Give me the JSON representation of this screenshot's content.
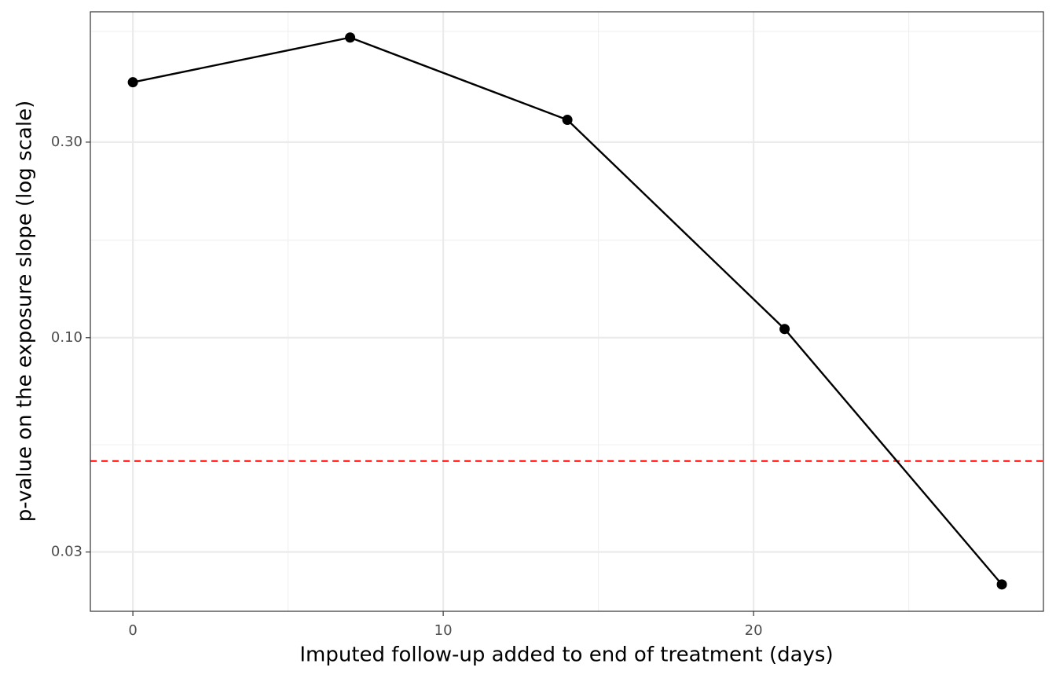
{
  "chart_data": {
    "type": "line",
    "xlabel": "Imputed follow-up added to end of treatment (days)",
    "ylabel": "p-value on the exposure slope (log scale)",
    "x": [
      0,
      7,
      14,
      21,
      28
    ],
    "series": [
      {
        "color": "#000000",
        "values": [
          0.42,
          0.54,
          0.34,
          0.105,
          0.025
        ]
      }
    ],
    "xlim": [
      -1.37,
      29.34
    ],
    "xticks": [
      0,
      10,
      20
    ],
    "xminor": [
      5,
      15,
      25
    ],
    "ylim": [
      0.0215,
      0.624
    ],
    "ylog": true,
    "yticks": [
      {
        "value": 0.03,
        "label": "0.03"
      },
      {
        "value": 0.1,
        "label": "0.10"
      },
      {
        "value": 0.3,
        "label": "0.30"
      }
    ],
    "yminor": [
      0.0548,
      0.173,
      0.559
    ],
    "hline": {
      "value": 0.05,
      "color": "#ff0000",
      "dashed": true
    },
    "grid": true
  }
}
